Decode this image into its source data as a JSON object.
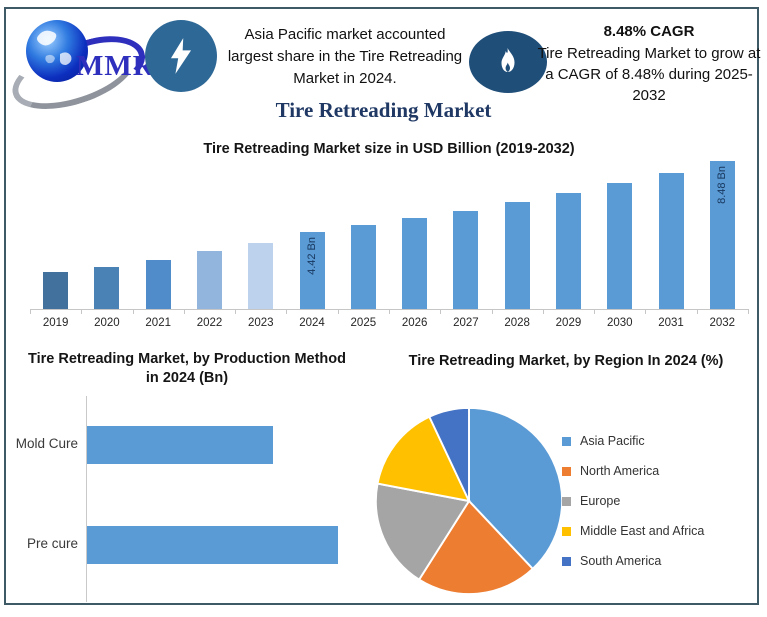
{
  "frame": {
    "border_color": "#3E5A66"
  },
  "header": {
    "logo": {
      "text": "MMR"
    },
    "highlight1": "Asia Pacific market accounted largest share in the Tire Retreading Market in 2024.",
    "cagr_title": "8.48% CAGR",
    "cagr_body": "Tire Retreading Market to grow at a CAGR of 8.48% during 2025-2032"
  },
  "page_title": "Tire Retreading Market",
  "accent": {
    "primary_bar_blue": "#5B9BD5",
    "navy_text": "#1F3864",
    "flame_circle": "#1F4E79",
    "bolt_circle": "#2E6896",
    "logo_blue": "#2F2FBE"
  },
  "chart_data": [
    {
      "id": "market_size",
      "type": "bar",
      "title": "Tire Retreading Market size in USD Billion (2019-2032)",
      "categories": [
        "2019",
        "2020",
        "2021",
        "2022",
        "2023",
        "2024",
        "2025",
        "2026",
        "2027",
        "2028",
        "2029",
        "2030",
        "2031",
        "2032"
      ],
      "values": [
        2.15,
        2.4,
        2.8,
        3.35,
        3.8,
        4.42,
        4.8,
        5.2,
        5.64,
        6.12,
        6.64,
        7.2,
        7.82,
        8.48
      ],
      "values_estimated_except_labeled": true,
      "unit": "USD Billion",
      "ylim": [
        0,
        8.48
      ],
      "grid": false,
      "bar_colors": [
        "#41719C",
        "#4B82B6",
        "#4F8CC9",
        "#92B5DE",
        "#BDD2EC",
        "#5B9BD5",
        "#5B9BD5",
        "#5B9BD5",
        "#5B9BD5",
        "#5B9BD5",
        "#5B9BD5",
        "#5B9BD5",
        "#5B9BD5",
        "#5B9BD5"
      ],
      "data_labels": [
        {
          "category": "2024",
          "text": "4.42 Bn"
        },
        {
          "category": "2032",
          "text": "8.48 Bn"
        }
      ]
    },
    {
      "id": "production_method",
      "type": "bar",
      "orientation": "horizontal",
      "title": "Tire Retreading Market, by Production Method in 2024 (Bn)",
      "categories": [
        "Mold Cure",
        "Pre cure"
      ],
      "values": [
        0.74,
        1.0
      ],
      "values_estimated_relative": true,
      "grid": false,
      "bar_color": "#5B9BD5"
    },
    {
      "id": "by_region",
      "type": "pie",
      "title": "Tire Retreading Market, by Region In 2024 (%)",
      "labels": [
        "Asia Pacific",
        "North America",
        "Europe",
        "Middle East and Africa",
        "South America"
      ],
      "values": [
        38,
        21,
        19,
        15,
        7
      ],
      "values_estimated": true,
      "colors": [
        "#5B9BD5",
        "#ED7D31",
        "#A5A5A5",
        "#FFC000",
        "#4472C4"
      ],
      "start_angle": 0,
      "legend_position": "right"
    }
  ]
}
